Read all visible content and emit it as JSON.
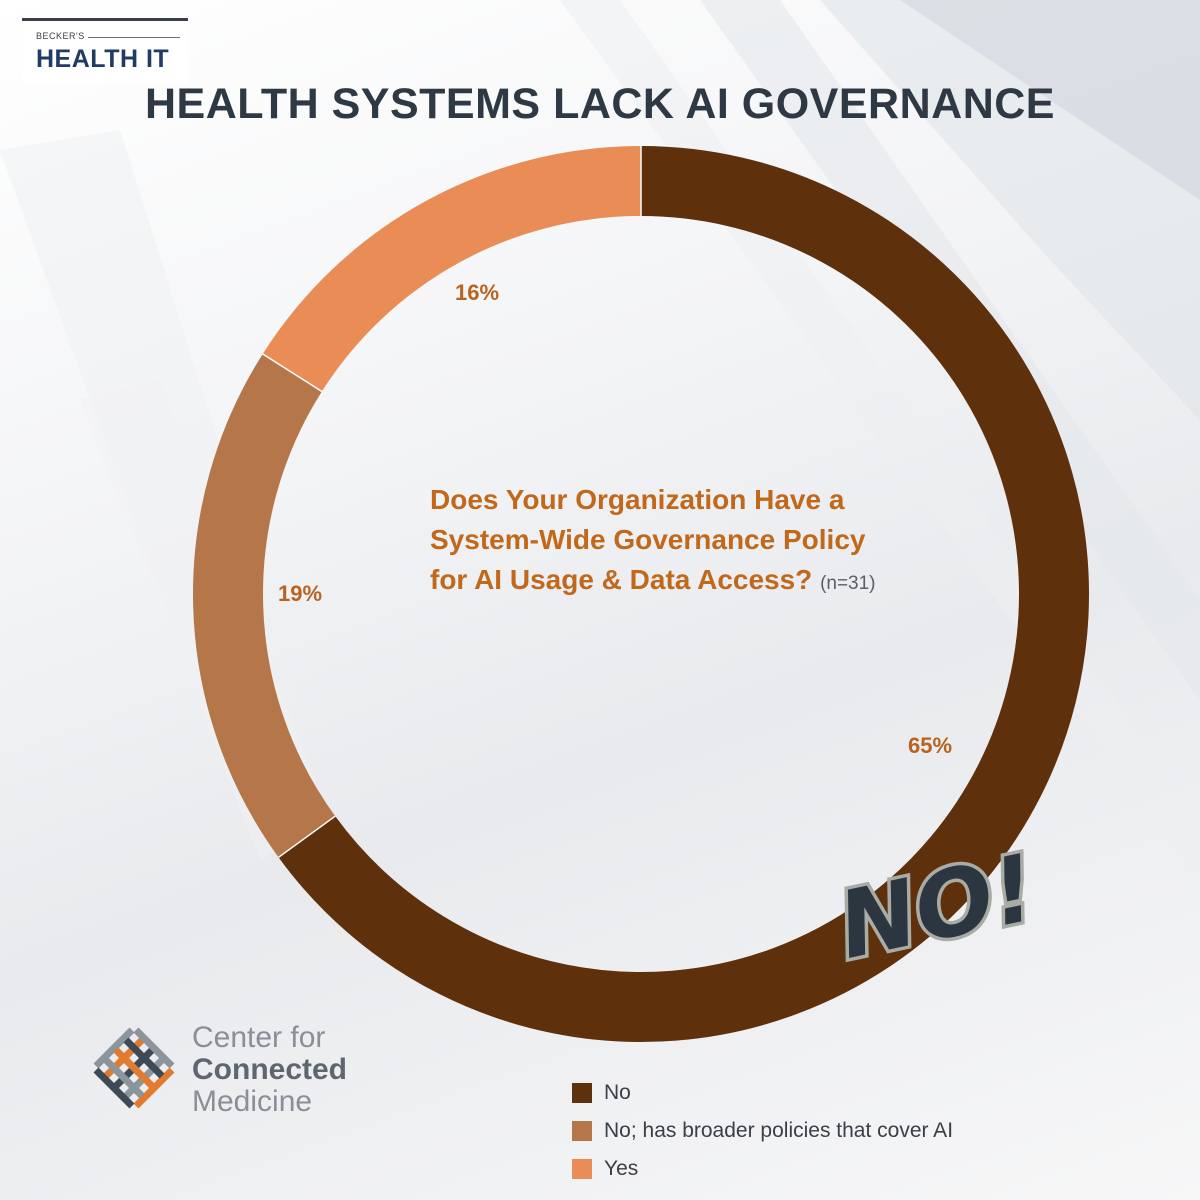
{
  "header": {
    "logo_small": "BECKER'S",
    "logo_big": "HEALTH IT",
    "title": "HEALTH SYSTEMS LACK AI GOVERNANCE"
  },
  "chart_data": {
    "type": "pie",
    "title": "Does Your Organization Have a System-Wide Governance Policy for AI Usage & Data Access?",
    "note": "(n=31)",
    "categories": [
      "No",
      "No; has broader policies that cover AI",
      "Yes"
    ],
    "values": [
      65,
      19,
      16
    ],
    "labels": [
      "65%",
      "19%",
      "16%"
    ],
    "colors": [
      "#5e300c",
      "#b5764a",
      "#e98c55"
    ],
    "legend_position": "bottom-right"
  },
  "stamp": {
    "text": "NO!!"
  },
  "footer": {
    "org_line1": "Center for",
    "org_line2": "Connected",
    "org_line3": "Medicine"
  }
}
